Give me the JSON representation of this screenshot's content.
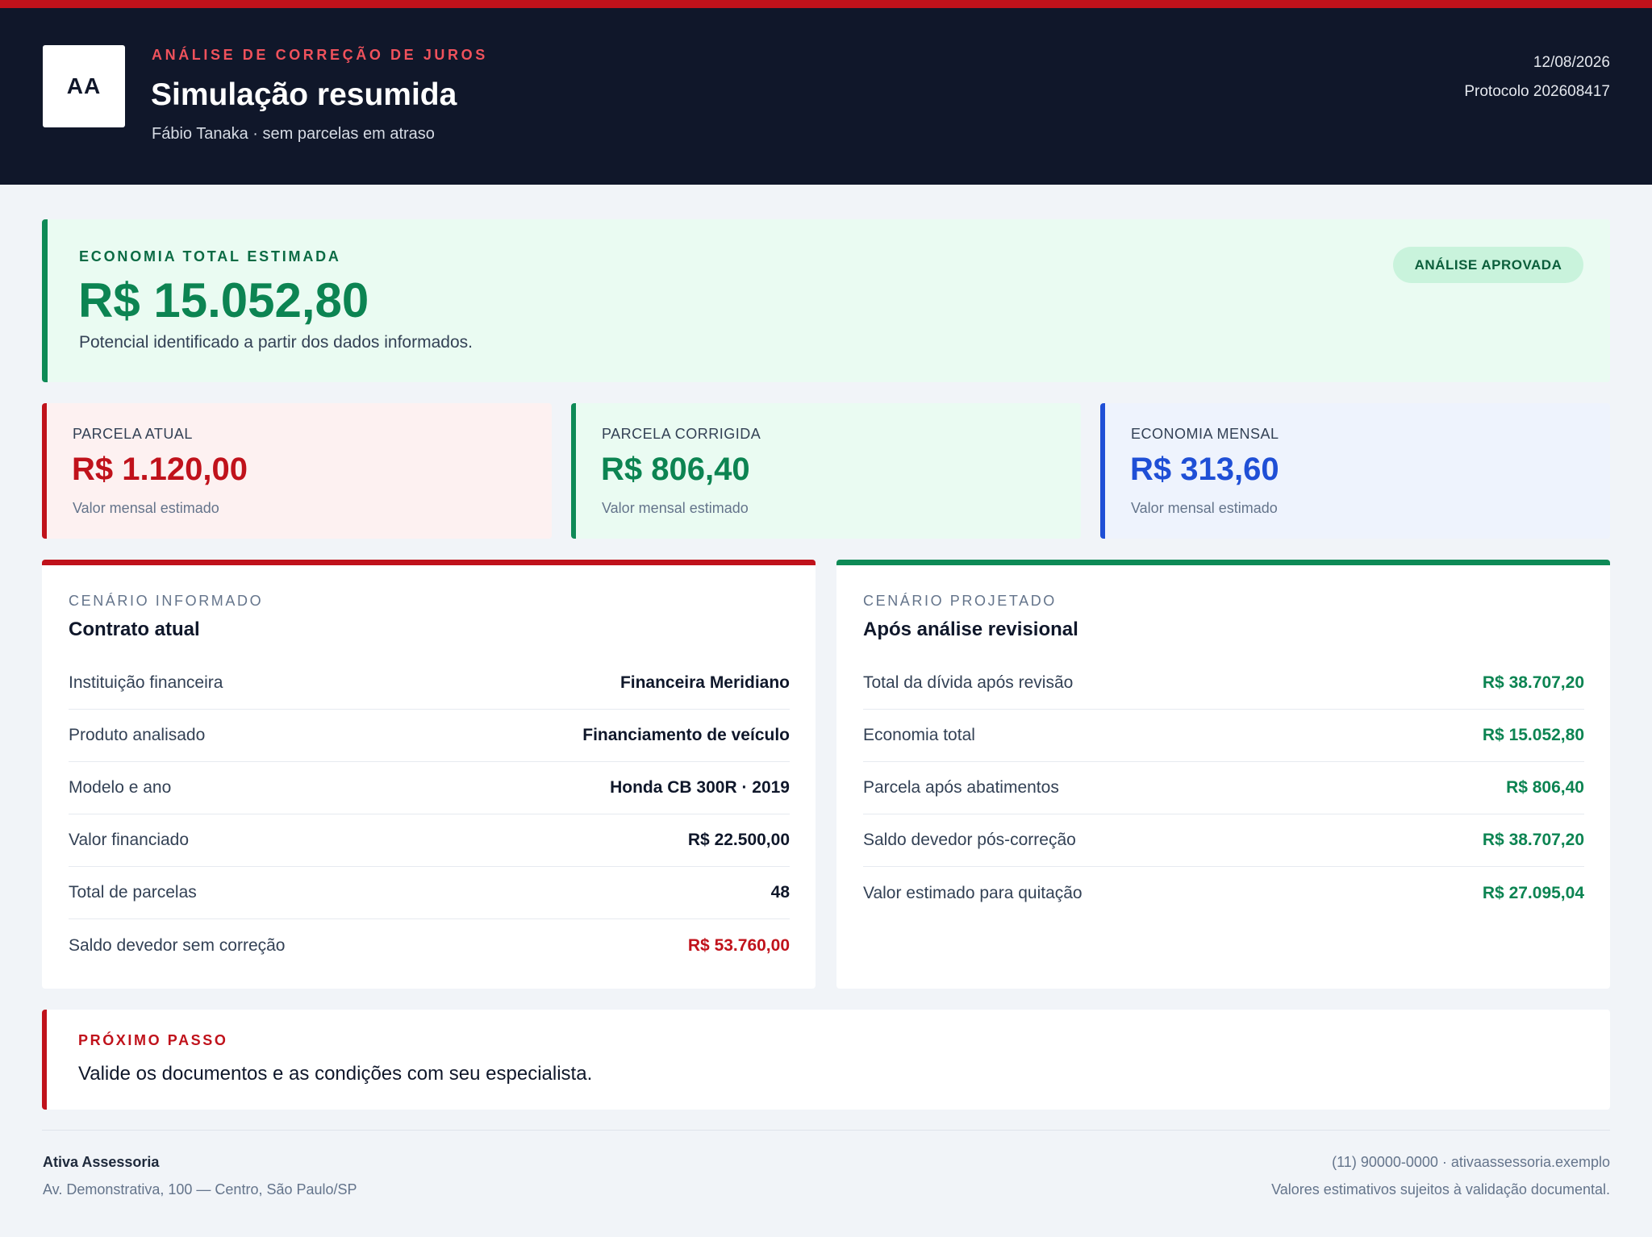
{
  "header": {
    "logo_text": "AA",
    "eyebrow": "ANÁLISE DE CORREÇÃO DE JUROS",
    "title": "Simulação resumida",
    "subtitle": "Fábio Tanaka · sem parcelas em atraso",
    "date": "12/08/2026",
    "protocol": "Protocolo 202608417"
  },
  "hero": {
    "label": "ECONOMIA TOTAL ESTIMADA",
    "value": "R$ 15.052,80",
    "note": "Potencial identificado a partir dos dados informados.",
    "badge": "ANÁLISE APROVADA"
  },
  "stats": [
    {
      "label": "PARCELA ATUAL",
      "value": "R$ 1.120,00",
      "note": "Valor mensal estimado",
      "color": "#c0121b"
    },
    {
      "label": "PARCELA CORRIGIDA",
      "value": "R$ 806,40",
      "note": "Valor mensal estimado",
      "color": "#0c8452"
    },
    {
      "label": "ECONOMIA MENSAL",
      "value": "R$ 313,60",
      "note": "Valor mensal estimado",
      "color": "#1f4fd6"
    }
  ],
  "current": {
    "eyebrow": "CENÁRIO INFORMADO",
    "title": "Contrato atual",
    "rows": [
      {
        "label": "Instituição financeira",
        "value": "Financeira Meridiano"
      },
      {
        "label": "Produto analisado",
        "value": "Financiamento de veículo"
      },
      {
        "label": "Modelo e ano",
        "value": "Honda CB 300R · 2019"
      },
      {
        "label": "Valor financiado",
        "value": "R$ 22.500,00"
      },
      {
        "label": "Total de parcelas",
        "value": "48"
      },
      {
        "label": "Saldo devedor sem correção",
        "value": "R$ 53.760,00"
      }
    ]
  },
  "projected": {
    "eyebrow": "CENÁRIO PROJETADO",
    "title": "Após análise revisional",
    "rows": [
      {
        "label": "Total da dívida após revisão",
        "value": "R$ 38.707,20"
      },
      {
        "label": "Economia total",
        "value": "R$ 15.052,80"
      },
      {
        "label": "Parcela após abatimentos",
        "value": "R$ 806,40"
      },
      {
        "label": "Saldo devedor pós-correção",
        "value": "R$ 38.707,20"
      },
      {
        "label": "Valor estimado para quitação",
        "value": "R$ 27.095,04"
      }
    ]
  },
  "next_step": {
    "label": "PRÓXIMO PASSO",
    "text": "Valide os documentos e as condições com seu especialista."
  },
  "footer": {
    "company": "Ativa Assessoria",
    "address": "Av. Demonstrativa, 100 — Centro, São Paulo/SP",
    "contact": "(11) 90000-0000 · ativaassessoria.exemplo",
    "disclaimer": "Valores estimativos sujeitos à validação documental."
  },
  "colors": {
    "header_bg": "#10172a",
    "accent_red": "#c0121b",
    "accent_green": "#0c8452",
    "accent_blue": "#1f4fd6"
  }
}
